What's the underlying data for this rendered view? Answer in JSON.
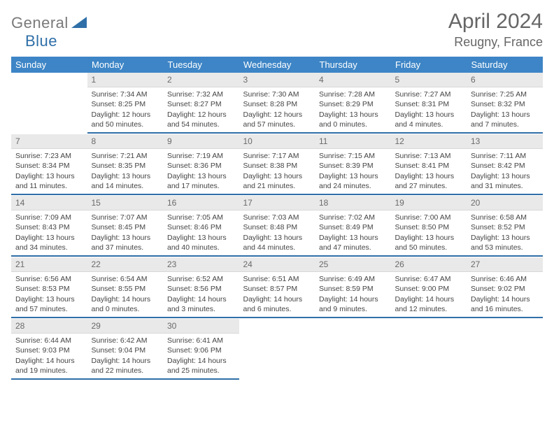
{
  "brand": {
    "word1": "General",
    "word2": "Blue",
    "logo_color": "#2f6fa8",
    "word1_color": "#7a7a7a"
  },
  "title": "April 2024",
  "location": "Reugny, France",
  "colors": {
    "header_bg": "#3d85c6",
    "header_text": "#ffffff",
    "daynum_bg": "#e9e9e9",
    "daynum_text": "#6a6a6a",
    "cell_border": "#2f6fa8",
    "body_text": "#444444"
  },
  "weekdays": [
    "Sunday",
    "Monday",
    "Tuesday",
    "Wednesday",
    "Thursday",
    "Friday",
    "Saturday"
  ],
  "grid": {
    "cols": 7,
    "rows": 5,
    "first_weekday_index": 1,
    "days_in_month": 30
  },
  "days": {
    "1": {
      "sunrise": "7:34 AM",
      "sunset": "8:25 PM",
      "daylight": "12 hours and 50 minutes."
    },
    "2": {
      "sunrise": "7:32 AM",
      "sunset": "8:27 PM",
      "daylight": "12 hours and 54 minutes."
    },
    "3": {
      "sunrise": "7:30 AM",
      "sunset": "8:28 PM",
      "daylight": "12 hours and 57 minutes."
    },
    "4": {
      "sunrise": "7:28 AM",
      "sunset": "8:29 PM",
      "daylight": "13 hours and 0 minutes."
    },
    "5": {
      "sunrise": "7:27 AM",
      "sunset": "8:31 PM",
      "daylight": "13 hours and 4 minutes."
    },
    "6": {
      "sunrise": "7:25 AM",
      "sunset": "8:32 PM",
      "daylight": "13 hours and 7 minutes."
    },
    "7": {
      "sunrise": "7:23 AM",
      "sunset": "8:34 PM",
      "daylight": "13 hours and 11 minutes."
    },
    "8": {
      "sunrise": "7:21 AM",
      "sunset": "8:35 PM",
      "daylight": "13 hours and 14 minutes."
    },
    "9": {
      "sunrise": "7:19 AM",
      "sunset": "8:36 PM",
      "daylight": "13 hours and 17 minutes."
    },
    "10": {
      "sunrise": "7:17 AM",
      "sunset": "8:38 PM",
      "daylight": "13 hours and 21 minutes."
    },
    "11": {
      "sunrise": "7:15 AM",
      "sunset": "8:39 PM",
      "daylight": "13 hours and 24 minutes."
    },
    "12": {
      "sunrise": "7:13 AM",
      "sunset": "8:41 PM",
      "daylight": "13 hours and 27 minutes."
    },
    "13": {
      "sunrise": "7:11 AM",
      "sunset": "8:42 PM",
      "daylight": "13 hours and 31 minutes."
    },
    "14": {
      "sunrise": "7:09 AM",
      "sunset": "8:43 PM",
      "daylight": "13 hours and 34 minutes."
    },
    "15": {
      "sunrise": "7:07 AM",
      "sunset": "8:45 PM",
      "daylight": "13 hours and 37 minutes."
    },
    "16": {
      "sunrise": "7:05 AM",
      "sunset": "8:46 PM",
      "daylight": "13 hours and 40 minutes."
    },
    "17": {
      "sunrise": "7:03 AM",
      "sunset": "8:48 PM",
      "daylight": "13 hours and 44 minutes."
    },
    "18": {
      "sunrise": "7:02 AM",
      "sunset": "8:49 PM",
      "daylight": "13 hours and 47 minutes."
    },
    "19": {
      "sunrise": "7:00 AM",
      "sunset": "8:50 PM",
      "daylight": "13 hours and 50 minutes."
    },
    "20": {
      "sunrise": "6:58 AM",
      "sunset": "8:52 PM",
      "daylight": "13 hours and 53 minutes."
    },
    "21": {
      "sunrise": "6:56 AM",
      "sunset": "8:53 PM",
      "daylight": "13 hours and 57 minutes."
    },
    "22": {
      "sunrise": "6:54 AM",
      "sunset": "8:55 PM",
      "daylight": "14 hours and 0 minutes."
    },
    "23": {
      "sunrise": "6:52 AM",
      "sunset": "8:56 PM",
      "daylight": "14 hours and 3 minutes."
    },
    "24": {
      "sunrise": "6:51 AM",
      "sunset": "8:57 PM",
      "daylight": "14 hours and 6 minutes."
    },
    "25": {
      "sunrise": "6:49 AM",
      "sunset": "8:59 PM",
      "daylight": "14 hours and 9 minutes."
    },
    "26": {
      "sunrise": "6:47 AM",
      "sunset": "9:00 PM",
      "daylight": "14 hours and 12 minutes."
    },
    "27": {
      "sunrise": "6:46 AM",
      "sunset": "9:02 PM",
      "daylight": "14 hours and 16 minutes."
    },
    "28": {
      "sunrise": "6:44 AM",
      "sunset": "9:03 PM",
      "daylight": "14 hours and 19 minutes."
    },
    "29": {
      "sunrise": "6:42 AM",
      "sunset": "9:04 PM",
      "daylight": "14 hours and 22 minutes."
    },
    "30": {
      "sunrise": "6:41 AM",
      "sunset": "9:06 PM",
      "daylight": "14 hours and 25 minutes."
    }
  },
  "labels": {
    "sunrise": "Sunrise: ",
    "sunset": "Sunset: ",
    "daylight": "Daylight: "
  }
}
